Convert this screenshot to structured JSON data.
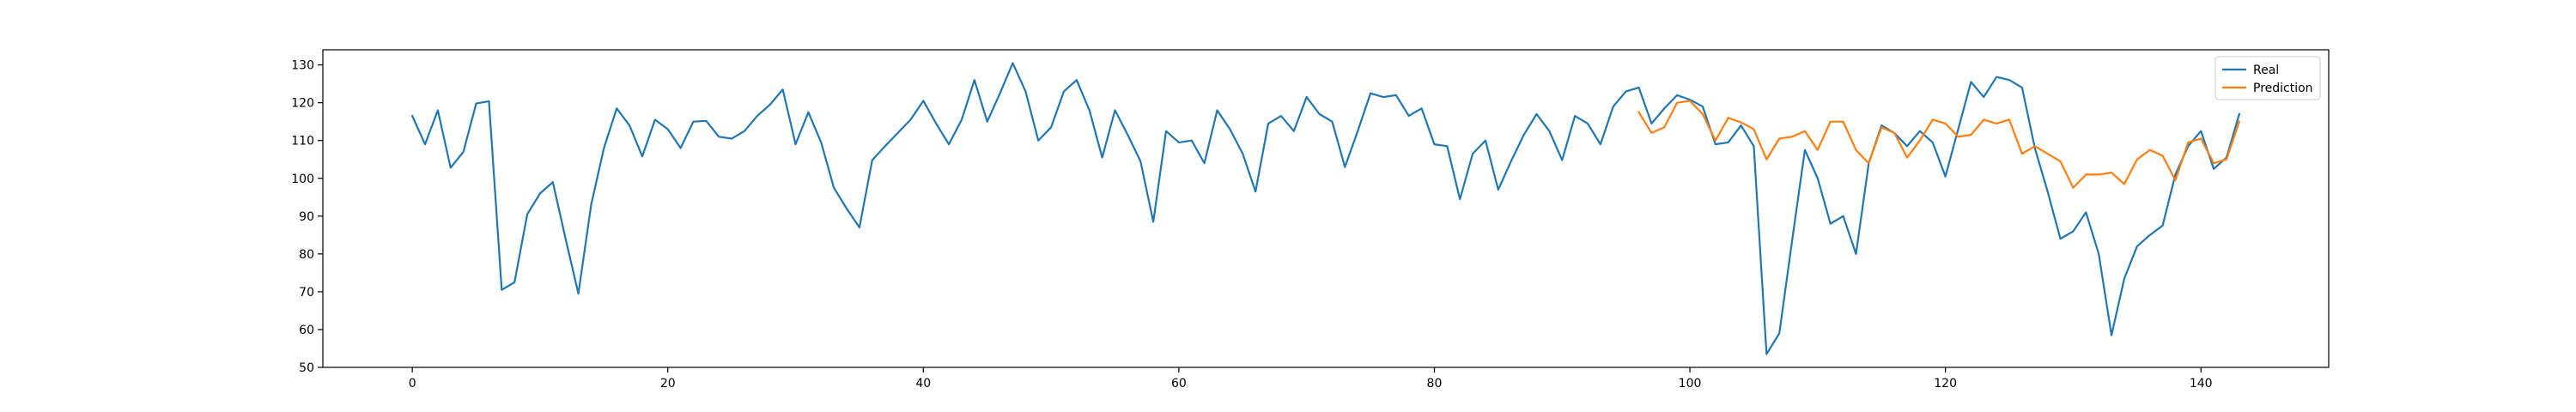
{
  "chart_data": {
    "type": "line",
    "title": "",
    "xlabel": "",
    "ylabel": "",
    "xlim": [
      -7,
      150
    ],
    "ylim": [
      50,
      134
    ],
    "xticks": [
      0,
      20,
      40,
      60,
      80,
      100,
      120,
      140
    ],
    "yticks": [
      50,
      60,
      70,
      80,
      90,
      100,
      110,
      120,
      130
    ],
    "grid": false,
    "legend_position": "top-right",
    "series": [
      {
        "name": "Real",
        "color": "#1f77b4",
        "x_start": 0,
        "values": [
          116.5,
          109.0,
          118.0,
          102.8,
          107.0,
          119.8,
          120.4,
          70.5,
          72.5,
          90.5,
          96.0,
          99.0,
          84.0,
          69.5,
          93.0,
          108.0,
          118.5,
          114.0,
          105.8,
          115.5,
          113.0,
          108.0,
          115.0,
          115.2,
          111.0,
          110.5,
          112.5,
          116.5,
          119.5,
          123.5,
          109.0,
          117.5,
          109.5,
          97.5,
          92.0,
          87.0,
          104.8,
          108.5,
          112.0,
          115.5,
          120.5,
          114.5,
          109.0,
          115.5,
          126.0,
          115.0,
          122.5,
          130.5,
          123.0,
          110.0,
          113.5,
          123.0,
          126.0,
          118.0,
          105.5,
          118.0,
          111.5,
          104.5,
          88.5,
          112.5,
          109.5,
          110.0,
          104.0,
          118.0,
          113.0,
          106.5,
          96.5,
          114.5,
          116.5,
          112.5,
          121.5,
          117.0,
          115.0,
          103.0,
          112.5,
          122.5,
          121.5,
          122.0,
          116.5,
          118.5,
          109.0,
          108.5,
          94.5,
          106.5,
          110.0,
          97.0,
          104.5,
          111.5,
          117.0,
          112.5,
          104.8,
          116.5,
          114.5,
          109.0,
          119.0,
          123.0,
          124.0,
          114.5,
          118.5,
          122.0,
          120.8,
          119.0,
          109.0,
          109.5,
          114.0,
          108.5,
          53.5,
          59.0,
          83.5,
          107.5,
          100.0,
          88.0,
          90.0,
          80.0,
          104.0,
          114.0,
          112.0,
          108.5,
          112.5,
          109.5,
          100.5,
          113.0,
          125.5,
          121.5,
          126.8,
          126.0,
          124.0,
          108.0,
          96.5,
          84.0,
          86.0,
          91.0,
          80.0,
          58.5,
          73.5,
          82.0,
          85.0,
          87.5,
          101.0,
          108.5,
          112.5,
          102.5,
          105.5,
          117.0
        ]
      },
      {
        "name": "Prediction",
        "color": "#ff7f0e",
        "x_start": 96,
        "values": [
          117.5,
          112.0,
          113.5,
          120.0,
          120.5,
          117.0,
          110.0,
          116.0,
          114.8,
          113.0,
          105.0,
          110.5,
          111.0,
          112.5,
          107.5,
          115.0,
          115.0,
          107.5,
          104.0,
          113.5,
          112.0,
          105.5,
          110.0,
          115.5,
          114.5,
          111.0,
          111.5,
          115.5,
          114.5,
          115.5,
          106.5,
          108.5,
          106.5,
          104.5,
          97.5,
          101.0,
          101.0,
          101.5,
          98.5,
          105.0,
          107.5,
          106.0,
          99.5,
          109.5,
          110.5,
          104.0,
          105.0,
          115.0
        ]
      }
    ]
  }
}
